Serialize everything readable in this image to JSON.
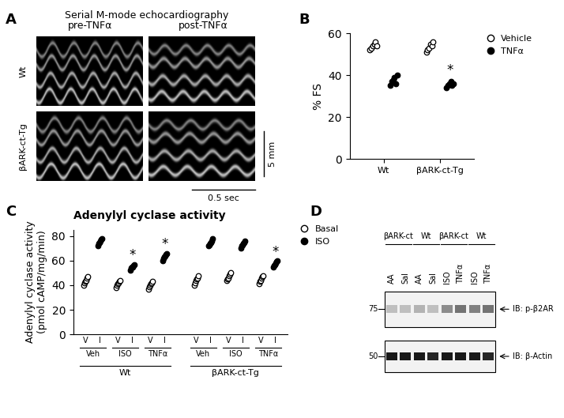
{
  "echo_panel": {
    "panel_label": "A",
    "title": "Serial M-mode echocardiography",
    "columns": [
      "pre-TNFα",
      "post-TNFα"
    ],
    "rows": [
      "Wt",
      "βARK-ct-Tg"
    ],
    "scale_y": "5 mm",
    "scale_x": "0.5 sec"
  },
  "chart_data": [
    {
      "panel_label": "B",
      "type": "scatter",
      "y_label": "% FS",
      "categories": [
        "Wt",
        "βARK-ct-Tg"
      ],
      "ylim": [
        0,
        60
      ],
      "yticks": [
        0,
        20,
        40,
        60
      ],
      "legend": "upper left",
      "series": [
        {
          "name": "Vehicle",
          "color": "#000000",
          "marker": "open",
          "values": [
            [
              52,
              53,
              54,
              55,
              56,
              54
            ],
            [
              51,
              52,
              53,
              55,
              54,
              56
            ]
          ]
        },
        {
          "name": "TNFα",
          "color": "#000000",
          "marker": "filled",
          "values": [
            [
              35,
              37,
              38,
              39,
              36,
              40
            ],
            [
              34,
              35,
              36,
              37,
              35,
              36
            ]
          ]
        }
      ],
      "annotations": [
        {
          "text": "*",
          "series": "TNFα",
          "index": 1
        }
      ]
    },
    {
      "panel_label": "C",
      "type": "scatter",
      "title": "Adenylyl cyclase activity",
      "y_label": "Adenylyl cyclase activity\n(pmol cAMP/mg/min)",
      "groups": [
        {
          "name": "Wt",
          "categories": [
            "Veh",
            "ISO",
            "TNFα"
          ]
        },
        {
          "name": "βARK-ct-Tg",
          "categories": [
            "Veh",
            "ISO",
            "TNFα"
          ]
        }
      ],
      "sub_labels": [
        "V",
        "I"
      ],
      "ylim": [
        0,
        85
      ],
      "yticks": [
        0,
        20,
        40,
        60,
        80
      ],
      "legend": "upper left",
      "series": [
        {
          "name": "Basal",
          "color": "#000000",
          "marker": "open",
          "values": [
            [
              40,
              42,
              43,
              44,
              46,
              47
            ],
            [
              38,
              40,
              41,
              42,
              43,
              44
            ],
            [
              37,
              39,
              40,
              41,
              42,
              43
            ],
            [
              40,
              42,
              44,
              45,
              46,
              48
            ],
            [
              44,
              45,
              46,
              48,
              49,
              50
            ],
            [
              41,
              43,
              44,
              46,
              47,
              48
            ]
          ]
        },
        {
          "name": "ISO",
          "color": "#000000",
          "marker": "filled",
          "values": [
            [
              72,
              74,
              75,
              76,
              77,
              78
            ],
            [
              52,
              54,
              55,
              55,
              56,
              57
            ],
            [
              60,
              62,
              63,
              64,
              65,
              66
            ],
            [
              72,
              73,
              74,
              75,
              76,
              78
            ],
            [
              70,
              72,
              73,
              74,
              75,
              76
            ],
            [
              55,
              56,
              57,
              58,
              59,
              60
            ]
          ]
        }
      ],
      "annotations": [
        {
          "text": "*",
          "series": "ISO",
          "index": 1
        },
        {
          "text": "*",
          "series": "ISO",
          "index": 2
        },
        {
          "text": "*",
          "series": "ISO",
          "index": 5
        }
      ]
    }
  ],
  "blot_panel": {
    "panel_label": "D",
    "groups": [
      {
        "name": "βARK-ct",
        "lanes": [
          "AA",
          "Sal"
        ]
      },
      {
        "name": "Wt",
        "lanes": [
          "AA",
          "Sal"
        ]
      },
      {
        "name": "βARK-ct",
        "lanes": [
          "ISO",
          "TNFα"
        ]
      },
      {
        "name": "Wt",
        "lanes": [
          "ISO",
          "TNFα"
        ]
      }
    ],
    "rows": [
      {
        "label": "IB: p-β2AR",
        "marker": "75",
        "intensity": [
          0.25,
          0.25,
          0.3,
          0.25,
          0.45,
          0.55,
          0.5,
          0.55
        ]
      },
      {
        "label": "IB: β-Actin",
        "marker": "50",
        "intensity": [
          0.9,
          0.9,
          0.9,
          0.85,
          0.9,
          0.9,
          0.9,
          0.85
        ]
      }
    ]
  }
}
